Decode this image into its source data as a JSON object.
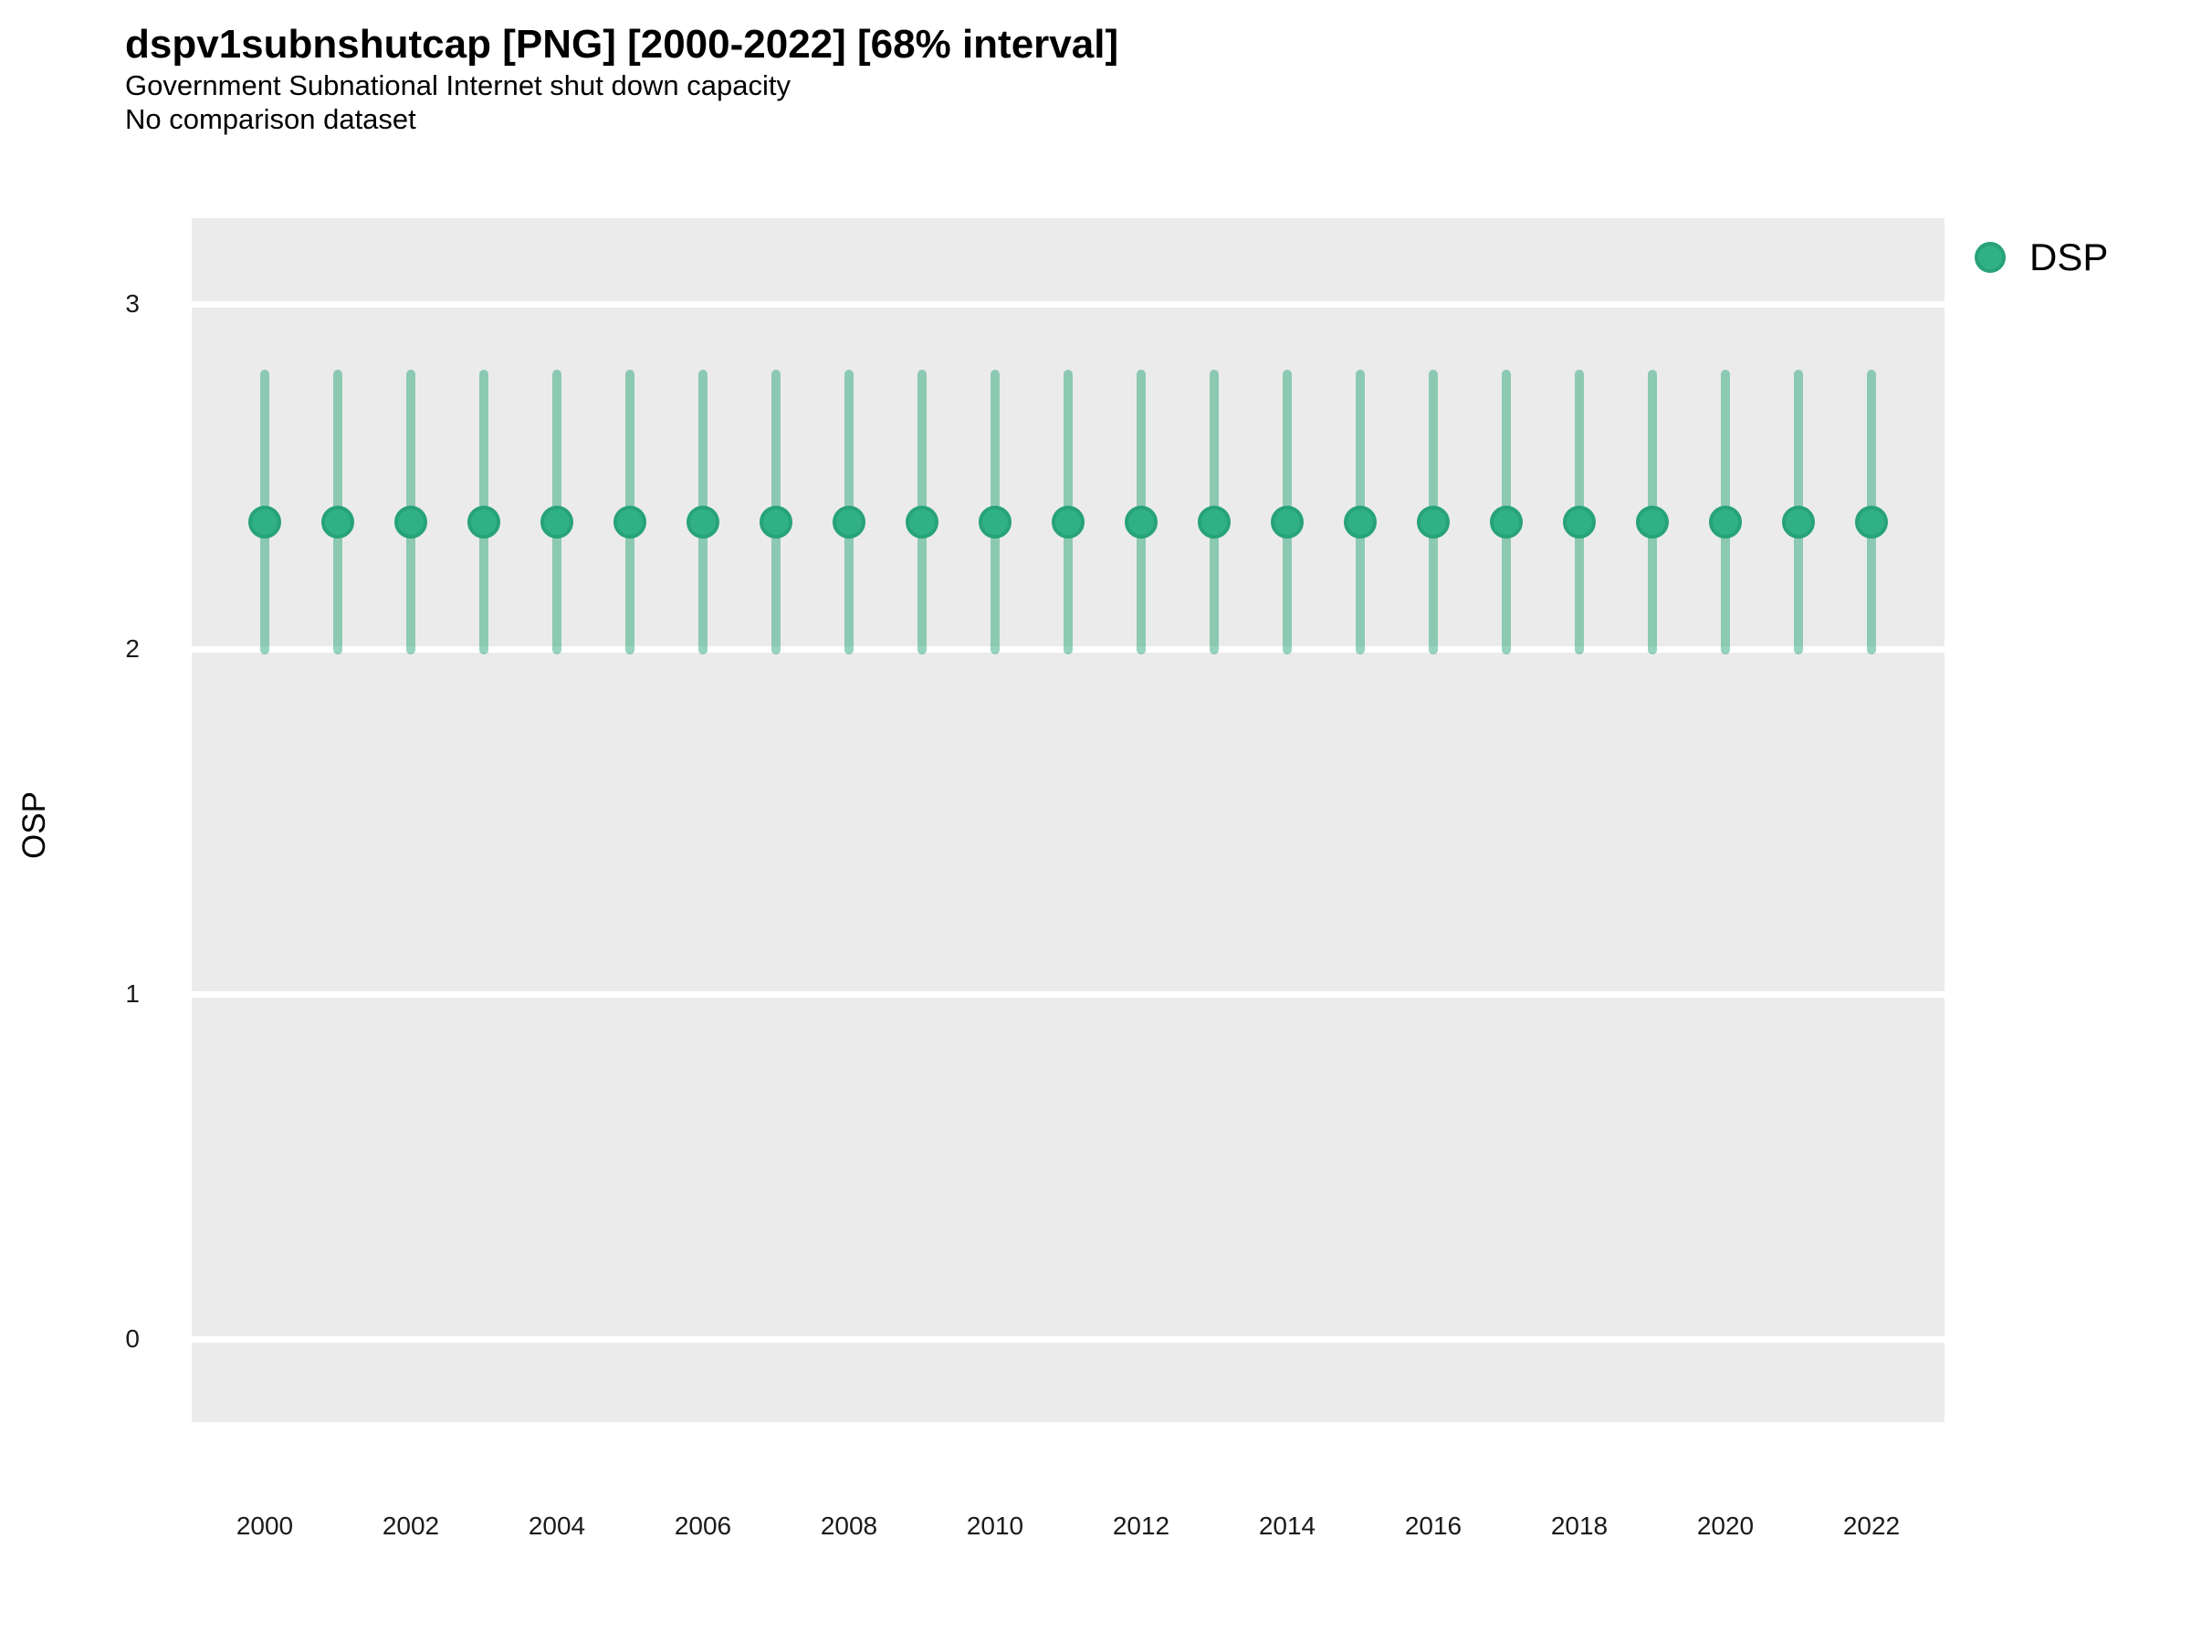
{
  "header": {
    "title": "dspv1subnshutcap [PNG] [2000-2022] [68% interval]",
    "subtitle_line1": "Government Subnational Internet shut down capacity",
    "subtitle_line2": "No comparison dataset"
  },
  "legend": {
    "position": "right",
    "items": [
      {
        "label": "DSP",
        "marker": "circle-icon",
        "color": "#2bad7e"
      }
    ]
  },
  "colors": {
    "point_fill": "#30b185",
    "point_edge": "#27a377",
    "range_line": "rgba(46,167,121,0.5)",
    "panel_background": "#ebebeb",
    "gridline": "#ffffff",
    "title_text": "#000000",
    "tick_text": "#1a1a1a"
  },
  "chart_data": {
    "type": "scatter",
    "subtype": "pointrange",
    "title": "dspv1subnshutcap [PNG] [2000-2022] [68% interval]",
    "subtitle": [
      "Government Subnational Internet shut down capacity",
      "No comparison dataset"
    ],
    "interval_level": "68%",
    "xlabel": "",
    "ylabel": "OSP",
    "legend_position": "right",
    "grid": "horizontal-major-only",
    "xlim": [
      1999,
      2023
    ],
    "ylim": [
      -0.24,
      3.25
    ],
    "yticks": [
      0,
      1,
      2,
      3
    ],
    "xticks": [
      2000,
      2002,
      2004,
      2006,
      2008,
      2010,
      2012,
      2014,
      2016,
      2018,
      2020,
      2022
    ],
    "series": [
      {
        "name": "DSP",
        "x": [
          2000,
          2001,
          2002,
          2003,
          2004,
          2005,
          2006,
          2007,
          2008,
          2009,
          2010,
          2011,
          2012,
          2013,
          2014,
          2015,
          2016,
          2017,
          2018,
          2019,
          2020,
          2021,
          2022
        ],
        "y": [
          2.37,
          2.37,
          2.37,
          2.37,
          2.37,
          2.37,
          2.37,
          2.37,
          2.37,
          2.37,
          2.37,
          2.37,
          2.37,
          2.37,
          2.37,
          2.37,
          2.37,
          2.37,
          2.37,
          2.37,
          2.37,
          2.37,
          2.37
        ],
        "low": [
          2.0,
          2.0,
          2.0,
          2.0,
          2.0,
          2.0,
          2.0,
          2.0,
          2.0,
          2.0,
          2.0,
          2.0,
          2.0,
          2.0,
          2.0,
          2.0,
          2.0,
          2.0,
          2.0,
          2.0,
          2.0,
          2.0,
          2.0
        ],
        "high": [
          2.8,
          2.8,
          2.8,
          2.8,
          2.8,
          2.8,
          2.8,
          2.8,
          2.8,
          2.8,
          2.8,
          2.8,
          2.8,
          2.8,
          2.8,
          2.8,
          2.8,
          2.8,
          2.8,
          2.8,
          2.8,
          2.8,
          2.8
        ]
      }
    ]
  }
}
